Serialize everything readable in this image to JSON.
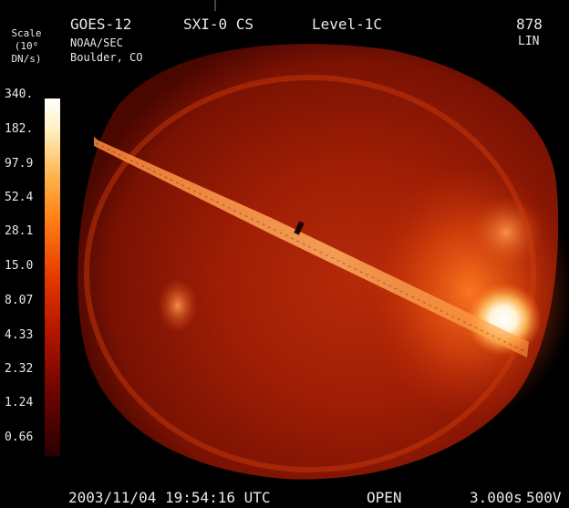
{
  "header": {
    "mission": "GOES-12",
    "instrument": "SXI-0 CS",
    "level": "Level-1C",
    "frame_number": "878",
    "scaling": "LIN",
    "organization": "NOAA/SEC",
    "location": "Boulder, CO"
  },
  "scale": {
    "title": "Scale (10⁰ DN/s)",
    "ticks": [
      "340.",
      "182.",
      "97.9",
      "52.4",
      "28.1",
      "15.0",
      "8.07",
      "4.33",
      "2.32",
      "1.24",
      "0.66"
    ],
    "colors": {
      "top": "#ffffff",
      "mid": "#ff7a12",
      "bottom": "#2a0000"
    }
  },
  "footer": {
    "datetime": "2003/11/04 19:54:16 UTC",
    "shutter": "OPEN",
    "exposure": "3.000s",
    "voltage": "500V"
  }
}
